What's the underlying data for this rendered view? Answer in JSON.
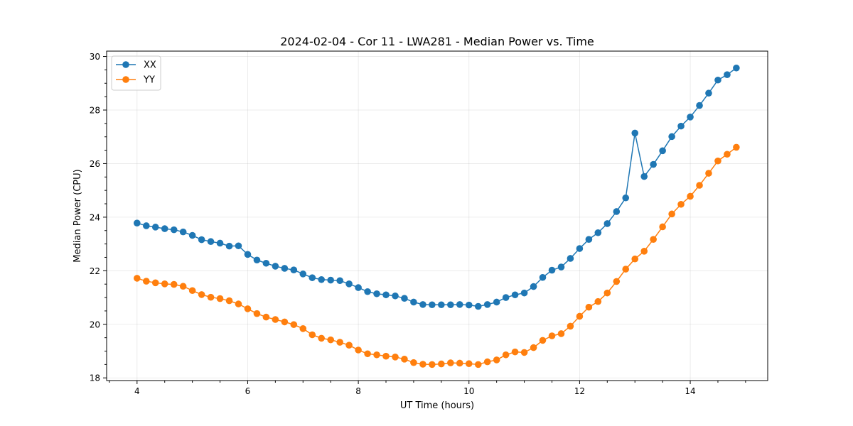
{
  "chart_data": {
    "type": "line",
    "title": "2024-02-04 - Cor 11 - LWA281 - Median Power vs. Time",
    "xlabel": "UT Time (hours)",
    "ylabel": "Median Power (CPU)",
    "xlim": [
      3.45,
      15.4
    ],
    "ylim": [
      17.9,
      30.2
    ],
    "xticks": [
      4,
      6,
      8,
      10,
      12,
      14
    ],
    "xtick_labels": [
      "4",
      "6",
      "8",
      "10",
      "12",
      "14"
    ],
    "yticks": [
      18,
      20,
      22,
      24,
      26,
      28,
      30
    ],
    "ytick_labels": [
      "18",
      "20",
      "22",
      "24",
      "26",
      "28",
      "30"
    ],
    "grid": true,
    "legend_position": "top-left",
    "x": [
      4.0,
      4.167,
      4.333,
      4.5,
      4.667,
      4.833,
      5.0,
      5.167,
      5.333,
      5.5,
      5.667,
      5.833,
      6.0,
      6.167,
      6.333,
      6.5,
      6.667,
      6.833,
      7.0,
      7.167,
      7.333,
      7.5,
      7.667,
      7.833,
      8.0,
      8.167,
      8.333,
      8.5,
      8.667,
      8.833,
      9.0,
      9.167,
      9.333,
      9.5,
      9.667,
      9.833,
      10.0,
      10.167,
      10.333,
      10.5,
      10.667,
      10.833,
      11.0,
      11.167,
      11.333,
      11.5,
      11.667,
      11.833,
      12.0,
      12.167,
      12.333,
      12.5,
      12.667,
      12.833,
      13.0,
      13.167,
      13.333,
      13.5,
      13.667,
      13.833,
      14.0,
      14.167,
      14.333,
      14.5,
      14.667,
      14.833
    ],
    "series": [
      {
        "name": "XX",
        "color": "#1f77b4",
        "values": [
          23.78,
          23.68,
          23.63,
          23.57,
          23.53,
          23.45,
          23.32,
          23.16,
          23.09,
          23.03,
          22.92,
          22.93,
          22.61,
          22.4,
          22.28,
          22.17,
          22.09,
          22.03,
          21.88,
          21.74,
          21.67,
          21.65,
          21.63,
          21.51,
          21.37,
          21.22,
          21.14,
          21.1,
          21.06,
          20.97,
          20.83,
          20.74,
          20.73,
          20.73,
          20.73,
          20.74,
          20.72,
          20.67,
          20.74,
          20.83,
          21.0,
          21.1,
          21.17,
          21.41,
          21.75,
          22.02,
          22.14,
          22.46,
          22.83,
          23.17,
          23.42,
          23.76,
          24.21,
          24.72,
          27.14,
          25.52,
          25.97,
          26.48,
          27.01,
          27.4,
          27.74,
          28.17,
          28.63,
          29.12,
          29.32,
          29.57
        ]
      },
      {
        "name": "YY",
        "color": "#ff7f0e",
        "values": [
          21.72,
          21.61,
          21.55,
          21.51,
          21.49,
          21.42,
          21.26,
          21.11,
          21.01,
          20.96,
          20.88,
          20.76,
          20.58,
          20.4,
          20.27,
          20.18,
          20.09,
          19.99,
          19.84,
          19.61,
          19.48,
          19.42,
          19.33,
          19.22,
          19.04,
          18.9,
          18.86,
          18.81,
          18.78,
          18.7,
          18.57,
          18.51,
          18.5,
          18.52,
          18.56,
          18.55,
          18.53,
          18.5,
          18.6,
          18.67,
          18.86,
          18.97,
          18.95,
          19.13,
          19.4,
          19.57,
          19.65,
          19.93,
          20.3,
          20.64,
          20.85,
          21.17,
          21.6,
          22.06,
          22.44,
          22.73,
          23.17,
          23.64,
          24.12,
          24.48,
          24.78,
          25.19,
          25.64,
          26.1,
          26.35,
          26.61
        ]
      }
    ]
  }
}
